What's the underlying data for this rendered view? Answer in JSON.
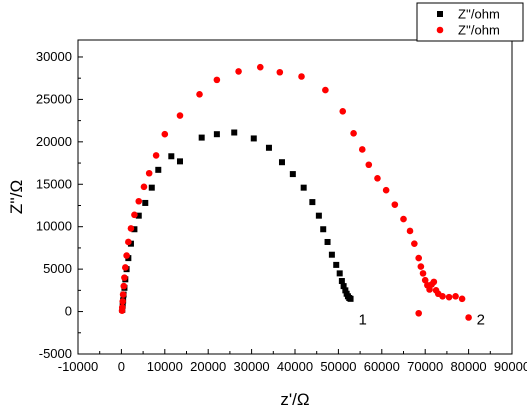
{
  "chart_data": {
    "type": "scatter",
    "xlabel": "z'/Ω",
    "ylabel": "Z''/Ω",
    "xlim": [
      -10000,
      90000
    ],
    "ylim": [
      -5000,
      32000
    ],
    "x_ticks": [
      -10000,
      0,
      10000,
      20000,
      30000,
      40000,
      50000,
      60000,
      70000,
      80000,
      90000
    ],
    "y_ticks": [
      -5000,
      0,
      5000,
      10000,
      15000,
      20000,
      25000,
      30000
    ],
    "grid": false,
    "legend_position": "top-right",
    "series": [
      {
        "name": "Z''/ohm",
        "marker": "square",
        "color": "#000000",
        "points": [
          [
            200,
            200
          ],
          [
            300,
            700
          ],
          [
            400,
            1300
          ],
          [
            500,
            2000
          ],
          [
            700,
            2800
          ],
          [
            900,
            3800
          ],
          [
            1200,
            5000
          ],
          [
            1600,
            6300
          ],
          [
            2200,
            8000
          ],
          [
            3000,
            9700
          ],
          [
            4000,
            11300
          ],
          [
            5500,
            12800
          ],
          [
            7000,
            14600
          ],
          [
            8500,
            16700
          ],
          [
            11500,
            18300
          ],
          [
            13500,
            17700
          ],
          [
            18500,
            20500
          ],
          [
            22000,
            20900
          ],
          [
            26000,
            21100
          ],
          [
            30500,
            20400
          ],
          [
            34000,
            19300
          ],
          [
            37000,
            17600
          ],
          [
            39500,
            16200
          ],
          [
            42000,
            14600
          ],
          [
            44000,
            12900
          ],
          [
            45500,
            11300
          ],
          [
            46500,
            9700
          ],
          [
            47500,
            8200
          ],
          [
            48500,
            6700
          ],
          [
            49500,
            5500
          ],
          [
            50300,
            4500
          ],
          [
            50800,
            3600
          ],
          [
            51200,
            3000
          ],
          [
            51600,
            2500
          ],
          [
            51900,
            2100
          ],
          [
            52200,
            1800
          ],
          [
            52500,
            1600
          ],
          [
            52800,
            1500
          ]
        ],
        "end_label": "1"
      },
      {
        "name": "Z''/ohm",
        "marker": "circle",
        "color": "#ff0000",
        "points": [
          [
            150,
            100
          ],
          [
            200,
            500
          ],
          [
            300,
            1200
          ],
          [
            400,
            2000
          ],
          [
            550,
            3000
          ],
          [
            700,
            4000
          ],
          [
            900,
            5200
          ],
          [
            1200,
            6600
          ],
          [
            1600,
            8200
          ],
          [
            2200,
            9800
          ],
          [
            3000,
            11400
          ],
          [
            4000,
            13000
          ],
          [
            5200,
            14700
          ],
          [
            6400,
            16300
          ],
          [
            8000,
            18400
          ],
          [
            10000,
            20900
          ],
          [
            13500,
            23100
          ],
          [
            18000,
            25600
          ],
          [
            22000,
            27300
          ],
          [
            27000,
            28300
          ],
          [
            32000,
            28800
          ],
          [
            36500,
            28200
          ],
          [
            41500,
            27700
          ],
          [
            47000,
            26100
          ],
          [
            51000,
            23600
          ],
          [
            53500,
            21000
          ],
          [
            55500,
            19100
          ],
          [
            57000,
            17300
          ],
          [
            59000,
            15700
          ],
          [
            61000,
            14300
          ],
          [
            63000,
            12600
          ],
          [
            65000,
            10900
          ],
          [
            66500,
            9500
          ],
          [
            67500,
            8000
          ],
          [
            68500,
            6300
          ],
          [
            69000,
            5300
          ],
          [
            69500,
            4500
          ],
          [
            70000,
            3700
          ],
          [
            70500,
            3100
          ],
          [
            71000,
            2600
          ],
          [
            71500,
            3200
          ],
          [
            72000,
            3500
          ],
          [
            72500,
            2500
          ],
          [
            73000,
            2100
          ],
          [
            74000,
            1800
          ],
          [
            75500,
            1700
          ],
          [
            77000,
            1800
          ],
          [
            78500,
            1500
          ],
          [
            68500,
            -200
          ],
          [
            80000,
            -700
          ]
        ],
        "end_label": "2"
      }
    ]
  }
}
